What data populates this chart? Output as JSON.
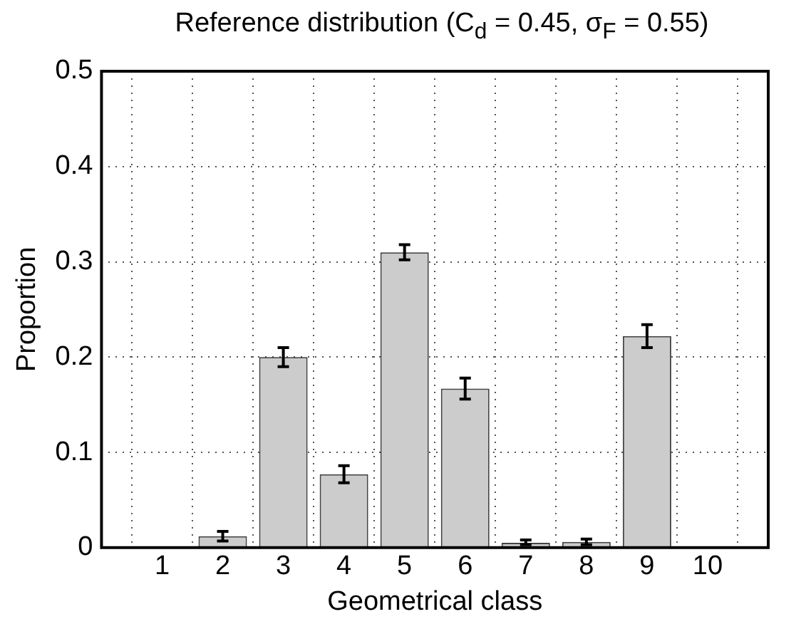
{
  "chart_data": {
    "type": "bar",
    "title": "Reference distribution (C$_{d}$ = 0.45, σ$_{F}$ = 0.55)",
    "xlabel": "Geometrical class",
    "ylabel": "Proportion",
    "x": [
      1,
      2,
      3,
      4,
      5,
      6,
      7,
      8,
      9,
      10
    ],
    "values": [
      0,
      0.012,
      0.2,
      0.077,
      0.31,
      0.167,
      0.005,
      0.006,
      0.222,
      0
    ],
    "errors": [
      null,
      0.005,
      0.01,
      0.009,
      0.008,
      0.011,
      [
        0.003,
        0.008
      ],
      0.003,
      0.012,
      null
    ],
    "color": "#cccccc",
    "xlim": [
      0,
      11
    ],
    "xticks": [
      1,
      2,
      3,
      4,
      5,
      6,
      7,
      8,
      9,
      10
    ],
    "ylim": [
      0,
      0.5
    ],
    "yticks": [
      0,
      0.1,
      0.2,
      0.3,
      0.4,
      0.5
    ],
    "grid": true
  }
}
